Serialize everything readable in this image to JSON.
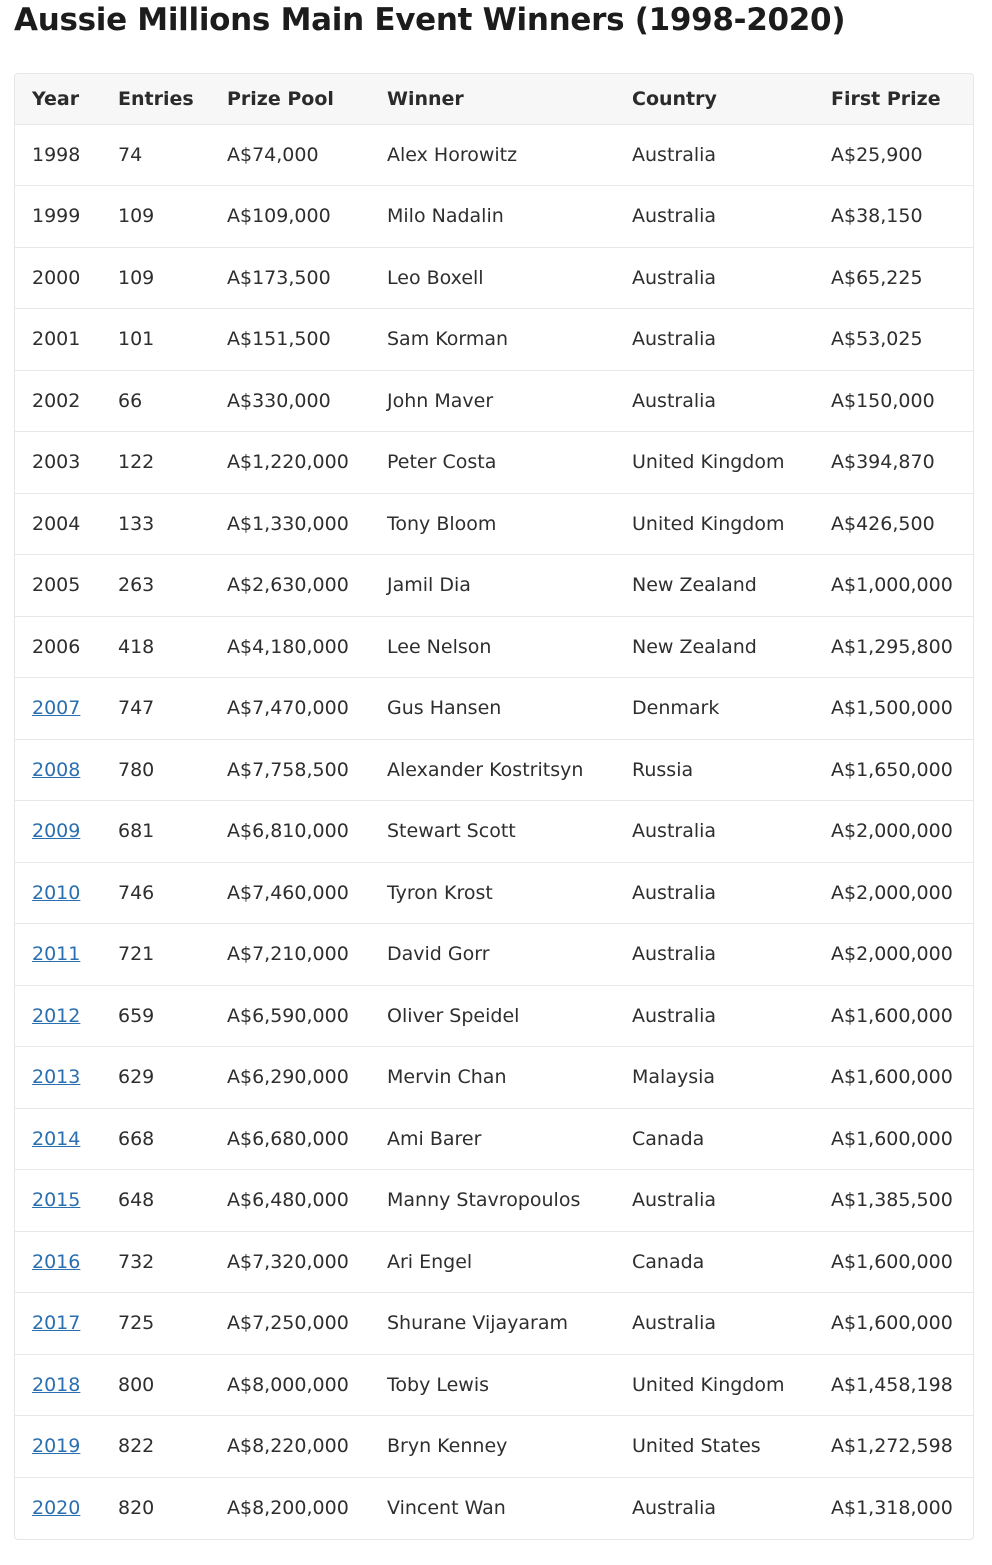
{
  "title": "Aussie Millions Main Event Winners (1998-2020)",
  "table": {
    "headers": [
      "Year",
      "Entries",
      "Prize Pool",
      "Winner",
      "Country",
      "First Prize"
    ],
    "rows": [
      {
        "year": "1998",
        "year_link": false,
        "entries": "74",
        "prize_pool": "A$74,000",
        "winner": "Alex Horowitz",
        "country": "Australia",
        "first_prize": "A$25,900"
      },
      {
        "year": "1999",
        "year_link": false,
        "entries": "109",
        "prize_pool": "A$109,000",
        "winner": "Milo Nadalin",
        "country": "Australia",
        "first_prize": "A$38,150"
      },
      {
        "year": "2000",
        "year_link": false,
        "entries": "109",
        "prize_pool": "A$173,500",
        "winner": "Leo Boxell",
        "country": "Australia",
        "first_prize": "A$65,225"
      },
      {
        "year": "2001",
        "year_link": false,
        "entries": "101",
        "prize_pool": "A$151,500",
        "winner": "Sam Korman",
        "country": "Australia",
        "first_prize": "A$53,025"
      },
      {
        "year": "2002",
        "year_link": false,
        "entries": "66",
        "prize_pool": "A$330,000",
        "winner": "John Maver",
        "country": "Australia",
        "first_prize": "A$150,000"
      },
      {
        "year": "2003",
        "year_link": false,
        "entries": "122",
        "prize_pool": "A$1,220,000",
        "winner": "Peter Costa",
        "country": "United Kingdom",
        "first_prize": "A$394,870"
      },
      {
        "year": "2004",
        "year_link": false,
        "entries": "133",
        "prize_pool": "A$1,330,000",
        "winner": "Tony Bloom",
        "country": "United Kingdom",
        "first_prize": "A$426,500"
      },
      {
        "year": "2005",
        "year_link": false,
        "entries": "263",
        "prize_pool": "A$2,630,000",
        "winner": "Jamil Dia",
        "country": "New Zealand",
        "first_prize": "A$1,000,000"
      },
      {
        "year": "2006",
        "year_link": false,
        "entries": "418",
        "prize_pool": "A$4,180,000",
        "winner": "Lee Nelson",
        "country": "New Zealand",
        "first_prize": "A$1,295,800"
      },
      {
        "year": "2007",
        "year_link": true,
        "entries": "747",
        "prize_pool": "A$7,470,000",
        "winner": "Gus Hansen",
        "country": "Denmark",
        "first_prize": "A$1,500,000"
      },
      {
        "year": "2008",
        "year_link": true,
        "entries": "780",
        "prize_pool": "A$7,758,500",
        "winner": "Alexander Kostritsyn",
        "country": "Russia",
        "first_prize": "A$1,650,000"
      },
      {
        "year": "2009",
        "year_link": true,
        "entries": "681",
        "prize_pool": "A$6,810,000",
        "winner": "Stewart Scott",
        "country": "Australia",
        "first_prize": "A$2,000,000"
      },
      {
        "year": "2010",
        "year_link": true,
        "entries": "746",
        "prize_pool": "A$7,460,000",
        "winner": "Tyron Krost",
        "country": "Australia",
        "first_prize": "A$2,000,000"
      },
      {
        "year": "2011",
        "year_link": true,
        "entries": "721",
        "prize_pool": "A$7,210,000",
        "winner": "David Gorr",
        "country": "Australia",
        "first_prize": "A$2,000,000"
      },
      {
        "year": "2012",
        "year_link": true,
        "entries": "659",
        "prize_pool": "A$6,590,000",
        "winner": "Oliver Speidel",
        "country": "Australia",
        "first_prize": "A$1,600,000"
      },
      {
        "year": "2013",
        "year_link": true,
        "entries": "629",
        "prize_pool": "A$6,290,000",
        "winner": "Mervin Chan",
        "country": "Malaysia",
        "first_prize": "A$1,600,000"
      },
      {
        "year": "2014",
        "year_link": true,
        "entries": "668",
        "prize_pool": "A$6,680,000",
        "winner": "Ami Barer",
        "country": "Canada",
        "first_prize": "A$1,600,000"
      },
      {
        "year": "2015",
        "year_link": true,
        "entries": "648",
        "prize_pool": "A$6,480,000",
        "winner": "Manny Stavropoulos",
        "country": "Australia",
        "first_prize": "A$1,385,500"
      },
      {
        "year": "2016",
        "year_link": true,
        "entries": "732",
        "prize_pool": "A$7,320,000",
        "winner": "Ari Engel",
        "country": "Canada",
        "first_prize": "A$1,600,000"
      },
      {
        "year": "2017",
        "year_link": true,
        "entries": "725",
        "prize_pool": "A$7,250,000",
        "winner": "Shurane Vijayaram",
        "country": "Australia",
        "first_prize": "A$1,600,000"
      },
      {
        "year": "2018",
        "year_link": true,
        "entries": "800",
        "prize_pool": "A$8,000,000",
        "winner": "Toby Lewis",
        "country": "United Kingdom",
        "first_prize": "A$1,458,198"
      },
      {
        "year": "2019",
        "year_link": true,
        "entries": "822",
        "prize_pool": "A$8,220,000",
        "winner": "Bryn Kenney",
        "country": "United States",
        "first_prize": "A$1,272,598"
      },
      {
        "year": "2020",
        "year_link": true,
        "entries": "820",
        "prize_pool": "A$8,200,000",
        "winner": "Vincent Wan",
        "country": "Australia",
        "first_prize": "A$1,318,000"
      }
    ]
  },
  "colors": {
    "link": "#2a6fb0",
    "header_bg": "#f7f7f7",
    "border": "#e8e8e8"
  }
}
